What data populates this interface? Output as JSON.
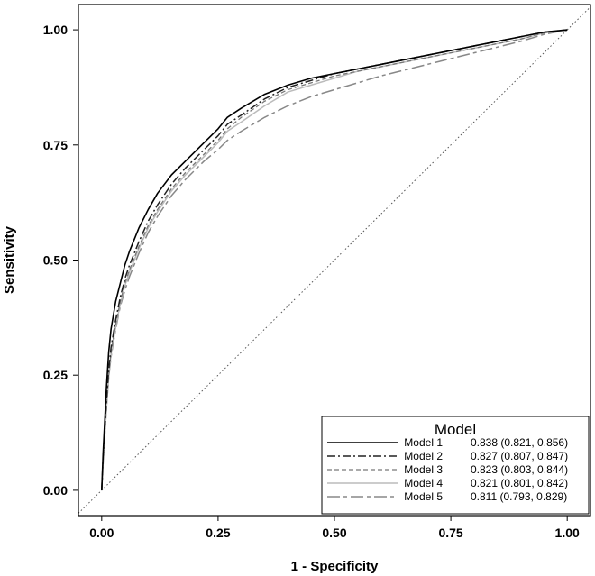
{
  "chart_data": {
    "type": "line",
    "title": "",
    "xlabel": "1 - Specificity",
    "ylabel": "Sensitivity",
    "xlim": [
      -0.05,
      1.05
    ],
    "ylim": [
      -0.055,
      1.055
    ],
    "x_ticks": [
      "0.00",
      "0.25",
      "0.50",
      "0.75",
      "1.00"
    ],
    "y_ticks": [
      "0.00",
      "0.25",
      "0.50",
      "0.75",
      "1.00"
    ],
    "x_tick_values": [
      0,
      0.25,
      0.5,
      0.75,
      1.0
    ],
    "y_tick_values": [
      0,
      0.25,
      0.5,
      0.75,
      1.0
    ],
    "grid": false,
    "legend": {
      "title": "Model",
      "placement": "bottom-right",
      "entries": [
        {
          "name": "Model 1",
          "auc": "0.838 (0.821, 0.856)"
        },
        {
          "name": "Model 2",
          "auc": "0.827 (0.807, 0.847)"
        },
        {
          "name": "Model 3",
          "auc": "0.823 (0.803, 0.844)"
        },
        {
          "name": "Model 4",
          "auc": "0.821 (0.801, 0.842)"
        },
        {
          "name": "Model 5",
          "auc": "0.811 (0.793, 0.829)"
        }
      ]
    },
    "reference_line": {
      "x": [
        0,
        1
      ],
      "y": [
        0,
        1
      ],
      "style": "dotted",
      "color": "#555555"
    },
    "series": [
      {
        "name": "Model 1",
        "color": "#000000",
        "dash": "",
        "width": 1.6,
        "x": [
          0,
          0.003,
          0.006,
          0.01,
          0.015,
          0.02,
          0.03,
          0.04,
          0.05,
          0.06,
          0.08,
          0.1,
          0.12,
          0.15,
          0.18,
          0.2,
          0.22,
          0.25,
          0.27,
          0.3,
          0.35,
          0.4,
          0.45,
          0.5,
          0.55,
          0.6,
          0.7,
          0.8,
          0.9,
          0.95,
          1.0
        ],
        "y": [
          0,
          0.08,
          0.14,
          0.22,
          0.3,
          0.35,
          0.41,
          0.45,
          0.49,
          0.52,
          0.57,
          0.61,
          0.645,
          0.685,
          0.715,
          0.735,
          0.755,
          0.785,
          0.81,
          0.83,
          0.86,
          0.88,
          0.895,
          0.905,
          0.915,
          0.925,
          0.945,
          0.965,
          0.985,
          0.995,
          1.0
        ]
      },
      {
        "name": "Model 2",
        "color": "#222222",
        "dash": "9,3,2,3",
        "width": 1.5,
        "x": [
          0,
          0.003,
          0.006,
          0.01,
          0.015,
          0.02,
          0.03,
          0.04,
          0.05,
          0.06,
          0.08,
          0.1,
          0.12,
          0.15,
          0.18,
          0.2,
          0.22,
          0.25,
          0.27,
          0.3,
          0.35,
          0.4,
          0.45,
          0.5,
          0.55,
          0.6,
          0.7,
          0.8,
          0.9,
          0.95,
          1.0
        ],
        "y": [
          0,
          0.07,
          0.12,
          0.19,
          0.26,
          0.31,
          0.37,
          0.42,
          0.46,
          0.49,
          0.54,
          0.585,
          0.62,
          0.665,
          0.7,
          0.72,
          0.74,
          0.77,
          0.795,
          0.815,
          0.85,
          0.875,
          0.89,
          0.905,
          0.915,
          0.925,
          0.945,
          0.965,
          0.985,
          0.995,
          1.0
        ]
      },
      {
        "name": "Model 3",
        "color": "#777777",
        "dash": "5,3",
        "width": 1.3,
        "x": [
          0,
          0.003,
          0.006,
          0.01,
          0.015,
          0.02,
          0.03,
          0.04,
          0.05,
          0.06,
          0.08,
          0.1,
          0.12,
          0.15,
          0.18,
          0.2,
          0.22,
          0.25,
          0.27,
          0.3,
          0.35,
          0.4,
          0.45,
          0.5,
          0.55,
          0.6,
          0.7,
          0.8,
          0.9,
          0.95,
          1.0
        ],
        "y": [
          0,
          0.065,
          0.115,
          0.18,
          0.25,
          0.3,
          0.36,
          0.41,
          0.45,
          0.48,
          0.53,
          0.575,
          0.61,
          0.655,
          0.69,
          0.71,
          0.73,
          0.76,
          0.785,
          0.81,
          0.845,
          0.87,
          0.885,
          0.9,
          0.91,
          0.92,
          0.94,
          0.96,
          0.98,
          0.993,
          1.0
        ]
      },
      {
        "name": "Model 4",
        "color": "#bbbbbb",
        "dash": "",
        "width": 1.5,
        "x": [
          0,
          0.003,
          0.006,
          0.01,
          0.015,
          0.02,
          0.03,
          0.04,
          0.05,
          0.06,
          0.08,
          0.1,
          0.12,
          0.15,
          0.18,
          0.2,
          0.22,
          0.25,
          0.27,
          0.3,
          0.35,
          0.4,
          0.45,
          0.5,
          0.55,
          0.6,
          0.7,
          0.8,
          0.9,
          0.95,
          1.0
        ],
        "y": [
          0,
          0.06,
          0.11,
          0.175,
          0.245,
          0.295,
          0.355,
          0.405,
          0.445,
          0.475,
          0.525,
          0.57,
          0.605,
          0.65,
          0.685,
          0.705,
          0.725,
          0.755,
          0.78,
          0.8,
          0.835,
          0.865,
          0.88,
          0.895,
          0.91,
          0.92,
          0.94,
          0.96,
          0.98,
          0.993,
          1.0
        ]
      },
      {
        "name": "Model 5",
        "color": "#888888",
        "dash": "14,4,4,4",
        "width": 1.5,
        "x": [
          0,
          0.003,
          0.006,
          0.01,
          0.015,
          0.02,
          0.03,
          0.04,
          0.05,
          0.06,
          0.08,
          0.1,
          0.12,
          0.15,
          0.18,
          0.2,
          0.22,
          0.25,
          0.27,
          0.3,
          0.35,
          0.4,
          0.45,
          0.5,
          0.55,
          0.6,
          0.7,
          0.8,
          0.9,
          0.95,
          1.0
        ],
        "y": [
          0,
          0.06,
          0.11,
          0.175,
          0.245,
          0.29,
          0.35,
          0.4,
          0.435,
          0.465,
          0.515,
          0.56,
          0.595,
          0.64,
          0.675,
          0.695,
          0.715,
          0.74,
          0.76,
          0.78,
          0.81,
          0.835,
          0.855,
          0.87,
          0.885,
          0.9,
          0.925,
          0.95,
          0.975,
          0.99,
          1.0
        ]
      }
    ]
  }
}
